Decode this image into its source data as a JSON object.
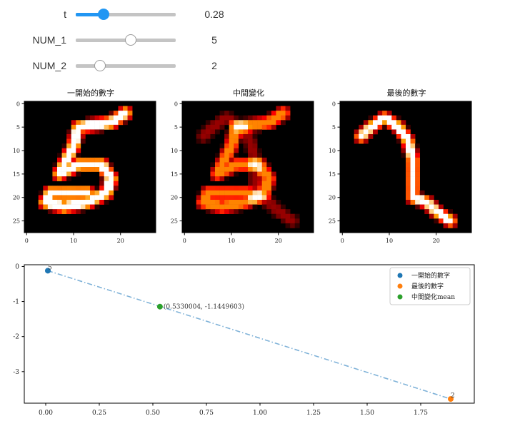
{
  "sliders": [
    {
      "label": "t",
      "value": "0.28",
      "fraction": 0.28,
      "active": true
    },
    {
      "label": "NUM_1",
      "value": "5",
      "fraction": 0.55,
      "active": false
    },
    {
      "label": "NUM_2",
      "value": "2",
      "fraction": 0.24,
      "active": false
    }
  ],
  "images": [
    {
      "title": "一開始的數字",
      "digit": "5"
    },
    {
      "title": "中間變化",
      "digit": "morph"
    },
    {
      "title": "最後的數字",
      "digit": "2"
    }
  ],
  "image_axis": {
    "xticks": [
      "0",
      "10",
      "20"
    ],
    "yticks": [
      "0",
      "5",
      "10",
      "15",
      "20",
      "25"
    ]
  },
  "chart_data": {
    "type": "scatter",
    "legend": [
      "一開始的數字",
      "最後的數字",
      "中間變化mean"
    ],
    "legend_location": "top-right",
    "colors": [
      "#1f77b4",
      "#ff7f0e",
      "#2ca02c"
    ],
    "points": [
      {
        "name": "一開始的數字",
        "x": 0.01,
        "y": -0.12,
        "label": "5"
      },
      {
        "name": "最後的數字",
        "x": 1.89,
        "y": -3.78,
        "label": "2"
      },
      {
        "name": "中間變化mean",
        "x": 0.533,
        "y": -1.145,
        "label": "(0.5330004, -1.1449603)"
      }
    ],
    "line": {
      "style": "dash-dot",
      "color": "#7fb2d8",
      "from": [
        0.01,
        -0.12
      ],
      "to": [
        1.89,
        -3.78
      ]
    },
    "xlim": [
      -0.1,
      2.0
    ],
    "ylim": [
      -3.9,
      0.05
    ],
    "xticks": [
      "0.00",
      "0.25",
      "0.50",
      "0.75",
      "1.00",
      "1.25",
      "1.50",
      "1.75"
    ],
    "yticks": [
      "0",
      "-1",
      "-2",
      "-3"
    ]
  }
}
